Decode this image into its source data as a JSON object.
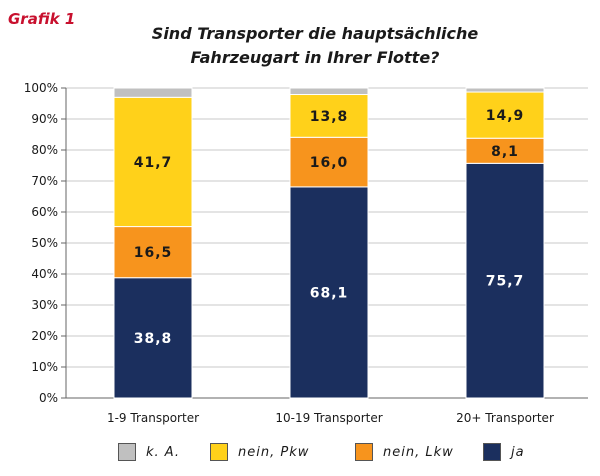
{
  "header": {
    "tag": "Grafik 1",
    "title_line1": "Sind Transporter die hauptsächliche",
    "title_line2": "Fahrzeugart in Ihrer Flotte?"
  },
  "colors": {
    "ka": "#c0c0c0",
    "nein_pkw": "#ffd11a",
    "nein_lkw": "#f7941d",
    "ja": "#1b2f5e"
  },
  "chart_data": {
    "type": "bar",
    "stacked": true,
    "title": "Sind Transporter die hauptsächliche Fahrzeugart in Ihrer Flotte?",
    "categories": [
      "1-9 Transporter",
      "10-19 Transporter",
      "20+ Transporter"
    ],
    "series": [
      {
        "name": "ja",
        "key": "ja",
        "values": [
          38.8,
          68.1,
          75.7
        ],
        "labels": [
          "38,8",
          "68,1",
          "75,7"
        ]
      },
      {
        "name": "nein, Lkw",
        "key": "nein_lkw",
        "values": [
          16.5,
          16.0,
          8.1
        ],
        "labels": [
          "16,5",
          "16,0",
          "8,1"
        ]
      },
      {
        "name": "nein, Pkw",
        "key": "nein_pkw",
        "values": [
          41.7,
          13.8,
          14.9
        ],
        "labels": [
          "41,7",
          "13,8",
          "14,9"
        ]
      },
      {
        "name": "k. A.",
        "key": "ka",
        "values": [
          3.0,
          2.1,
          1.3
        ],
        "labels": [
          "",
          "",
          ""
        ]
      }
    ],
    "yticks": [
      "0%",
      "10%",
      "20%",
      "30%",
      "40%",
      "50%",
      "60%",
      "70%",
      "80%",
      "90%",
      "100%"
    ],
    "ylim": [
      0,
      100
    ],
    "legend": [
      "k. A.",
      "nein, Pkw",
      "nein, Lkw",
      "ja"
    ],
    "legend_position": "bottom"
  }
}
